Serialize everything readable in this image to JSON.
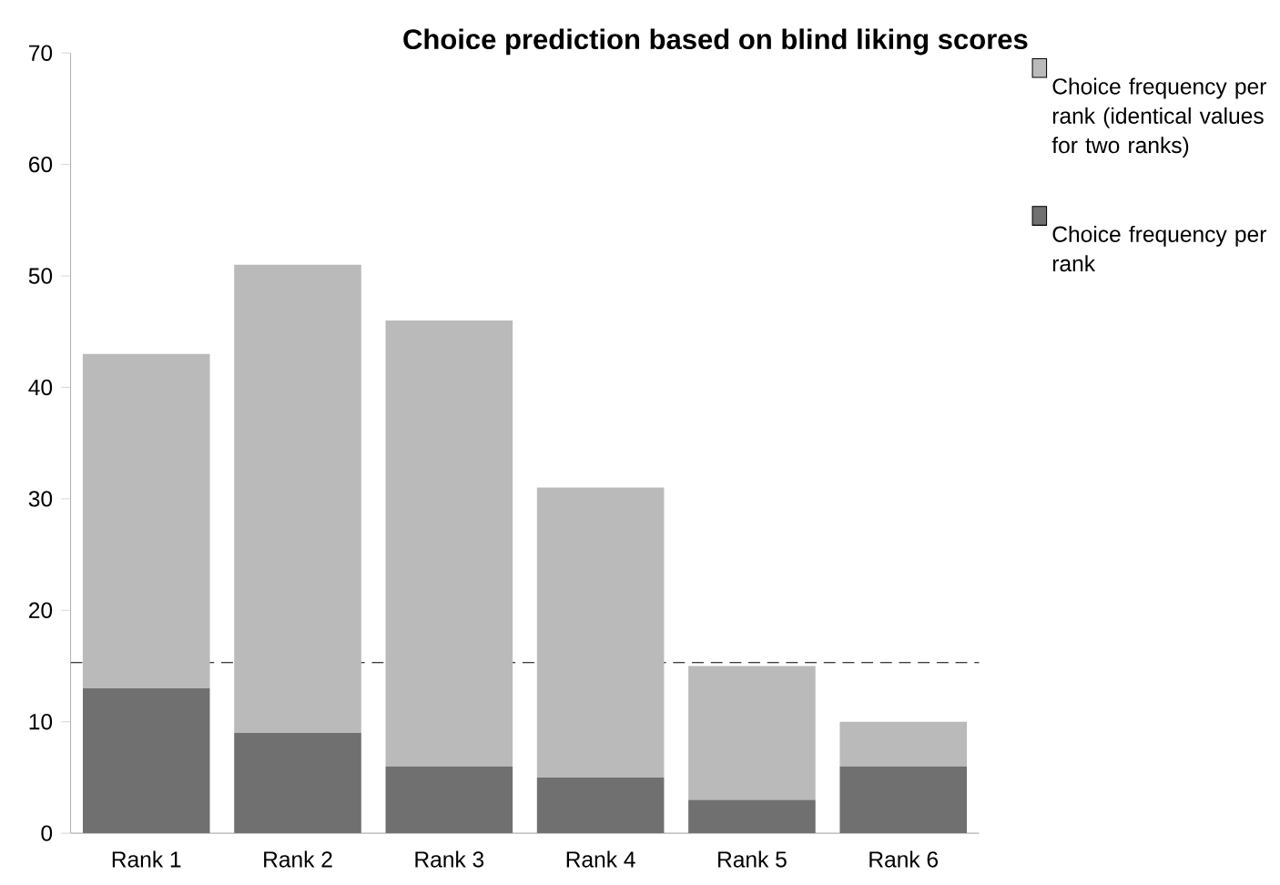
{
  "chart_data": {
    "type": "bar",
    "title": "Choice prediction based on blind liking scores",
    "categories": [
      "Rank 1",
      "Rank 2",
      "Rank 3",
      "Rank 4",
      "Rank 5",
      "Rank 6"
    ],
    "stacked": true,
    "series": [
      {
        "name": "Choice frequency per rank",
        "color": "#707070",
        "values": [
          13,
          9,
          6,
          5,
          3,
          6
        ]
      },
      {
        "name": "Choice frequency per rank (identical values for two ranks)",
        "color": "#bababa",
        "values": [
          30,
          42,
          40,
          26,
          12,
          4
        ]
      }
    ],
    "ylim": [
      0,
      70
    ],
    "yticks": [
      0,
      10,
      20,
      30,
      40,
      50,
      60,
      70
    ],
    "ref_lines": [
      {
        "axis": "y",
        "value": 15.3,
        "line_style": "dashed",
        "color": "#000000"
      }
    ],
    "legend": "right",
    "grid": false
  }
}
